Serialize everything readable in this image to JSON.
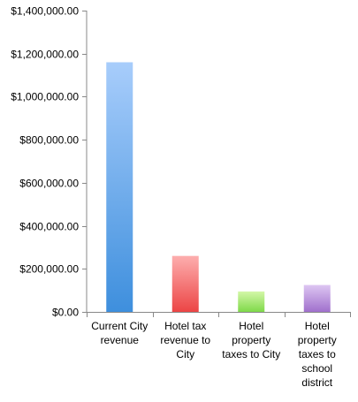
{
  "chart_data": {
    "type": "bar",
    "title": "",
    "xlabel": "",
    "ylabel": "",
    "ylim": [
      0,
      1400000
    ],
    "y_ticks": [
      0,
      200000,
      400000,
      600000,
      800000,
      1000000,
      1200000,
      1400000
    ],
    "y_tick_labels": [
      "$0.00",
      "$200,000.00",
      "$400,000.00",
      "$600,000.00",
      "$800,000.00",
      "$1,000,000.00",
      "$1,200,000.00",
      "$1,400,000.00"
    ],
    "grid": false,
    "legend": "none",
    "categories": [
      [
        "Current City",
        "revenue"
      ],
      [
        "Hotel tax",
        "revenue to",
        "City"
      ],
      [
        "Hotel",
        "property",
        "taxes to City"
      ],
      [
        "Hotel",
        "property",
        "taxes to",
        "school",
        "district"
      ]
    ],
    "values": [
      1160000,
      260000,
      95000,
      125000
    ],
    "colors": [
      {
        "light": "#a8cdfb",
        "dark": "#3e8fdd"
      },
      {
        "light": "#fdaeae",
        "dark": "#ec4545"
      },
      {
        "light": "#d4f7a8",
        "dark": "#7fd94a"
      },
      {
        "light": "#ddc6f2",
        "dark": "#a070cc"
      }
    ]
  }
}
